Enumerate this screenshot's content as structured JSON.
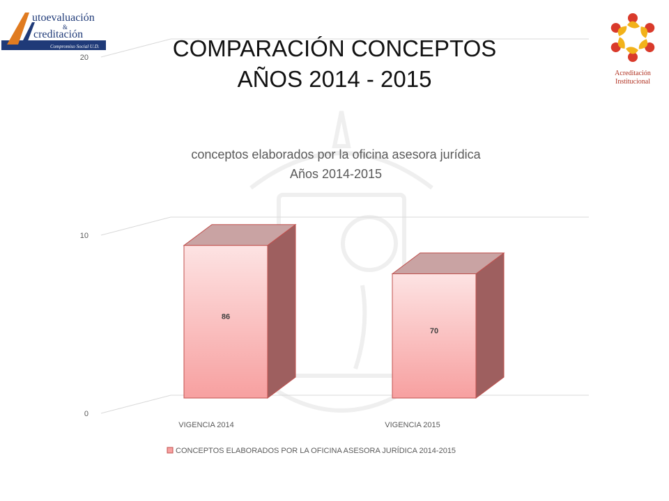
{
  "slide": {
    "title_line1": "COMPARACIÓN CONCEPTOS",
    "title_line2": "AÑOS 2014 - 2015"
  },
  "logos": {
    "left": {
      "line1": "utoevaluación",
      "amp": "&",
      "line2": "creditación",
      "tagline": "Compromiso Social U.D."
    },
    "right": {
      "line1": "Acreditación",
      "line2": "Institucional"
    }
  },
  "colors": {
    "bar_front_top": "#fde3e3",
    "bar_front_bottom": "#f7a0a0",
    "bar_side": "#9e5f5f",
    "bar_top": "#c9a3a3",
    "bar_edge": "#c0504d",
    "grid": "#d9d9d9"
  },
  "chart_data": {
    "type": "bar",
    "title": "conceptos elaborados por la oficina asesora jurídica",
    "subtitle": "Años 2014-2015",
    "categories": [
      "VIGENCIA 2014",
      "VIGENCIA 2015"
    ],
    "series": [
      {
        "name": "CONCEPTOS ELABORADOS POR LA OFICINA ASESORA JURÍDICA 2014-2015",
        "values": [
          86,
          70
        ]
      }
    ],
    "ylim": [
      0,
      90
    ],
    "yticks": [
      0,
      10,
      20,
      30,
      40,
      50,
      60,
      70,
      80,
      90
    ],
    "grid": true,
    "legend_position": "bottom",
    "style": "3d-column"
  }
}
